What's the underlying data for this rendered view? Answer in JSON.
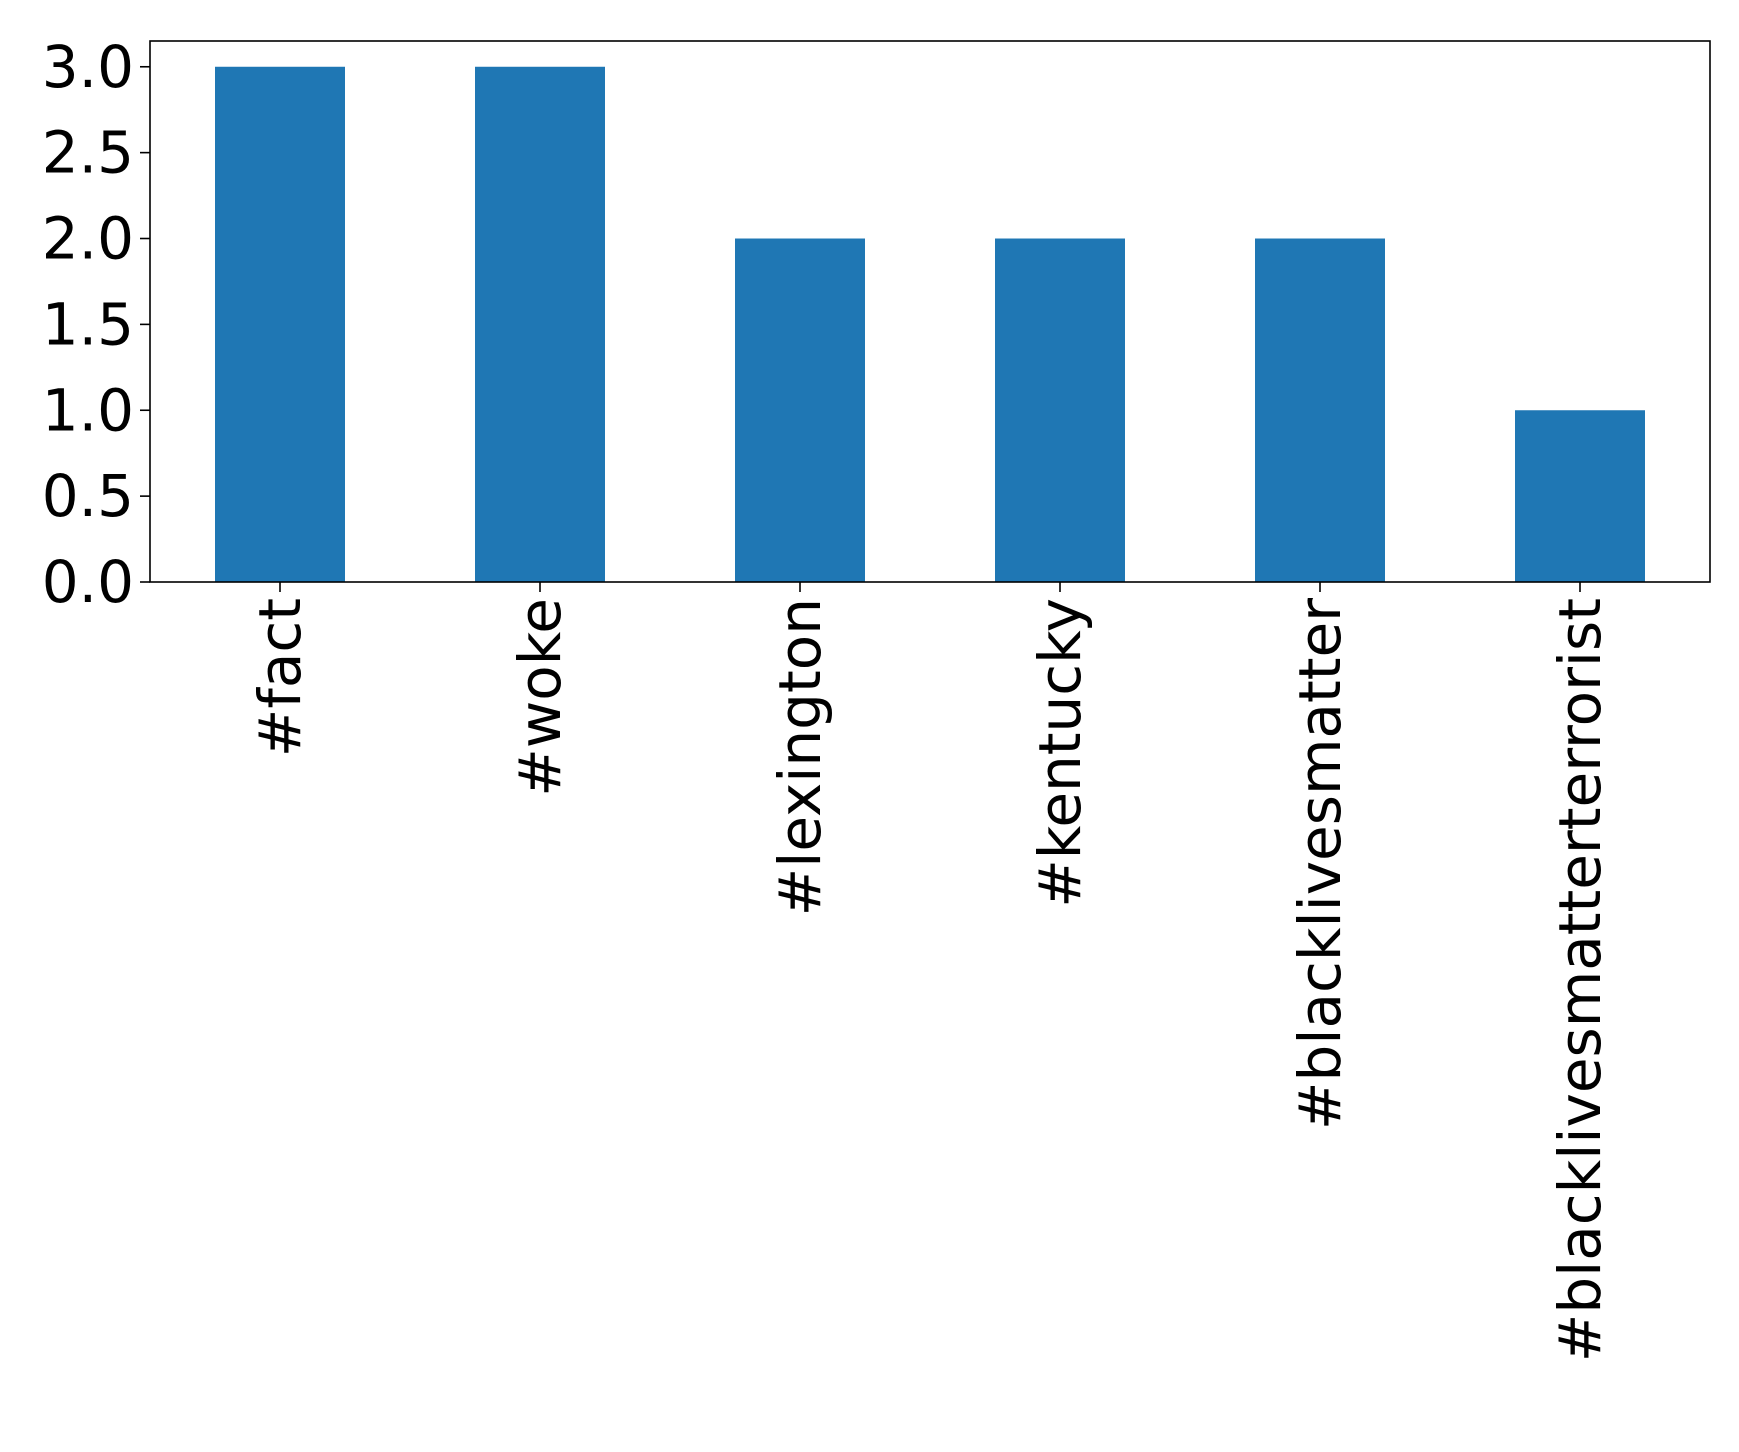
{
  "chart_data": {
    "type": "bar",
    "categories": [
      "#fact",
      "#woke",
      "#lexington",
      "#kentucky",
      "#blacklivesmatter",
      "#blacklivesmatterterrorist"
    ],
    "values": [
      3,
      3,
      2,
      2,
      2,
      1
    ],
    "title": "",
    "xlabel": "",
    "ylabel": "",
    "ylim": [
      0,
      3.15
    ],
    "yticks": [
      0.0,
      0.5,
      1.0,
      1.5,
      2.0,
      2.5,
      3.0
    ],
    "ytick_labels": [
      "0.0",
      "0.5",
      "1.0",
      "1.5",
      "2.0",
      "2.5",
      "3.0"
    ],
    "bar_color": "#1f77b4",
    "grid": false,
    "legend": "none"
  }
}
